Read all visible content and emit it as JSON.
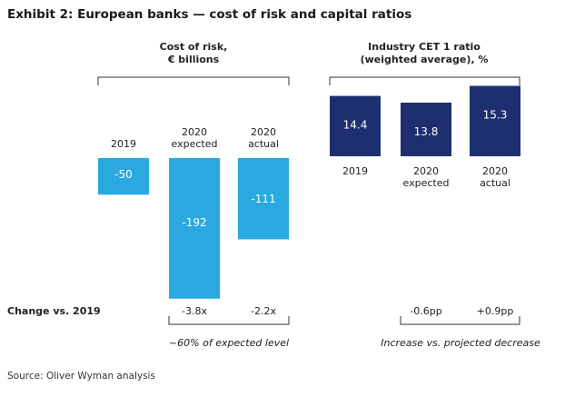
{
  "title": "Exhibit 2: European banks — cost of risk and capital ratios",
  "source": "Source: Oliver Wyman analysis",
  "colors": {
    "cost_of_risk": "#2aa8e0",
    "cet1": "#1d2f6e",
    "bracket": "#333333"
  },
  "change_label": "Change vs. 2019",
  "chart_data": [
    {
      "type": "bar",
      "title": "Cost of risk,\n€ billions",
      "categories": [
        "2019",
        "2020\nexpected",
        "2020\nactual"
      ],
      "values": [
        -50,
        -192,
        -111
      ],
      "data_labels": [
        "-50",
        "-192",
        "-111"
      ],
      "changes": [
        "",
        "-3.8x",
        "-2.2x"
      ],
      "change_note": "~60% of expected level"
    },
    {
      "type": "bar",
      "title": "Industry CET 1 ratio\n(weighted average), %",
      "categories": [
        "2019",
        "2020\nexpected",
        "2020\nactual"
      ],
      "values": [
        14.4,
        13.8,
        15.3
      ],
      "data_labels": [
        "14.4",
        "13.8",
        "15.3"
      ],
      "changes": [
        "",
        "-0.6pp",
        "+0.9pp"
      ],
      "change_note": "Increase vs. projected decrease"
    }
  ]
}
